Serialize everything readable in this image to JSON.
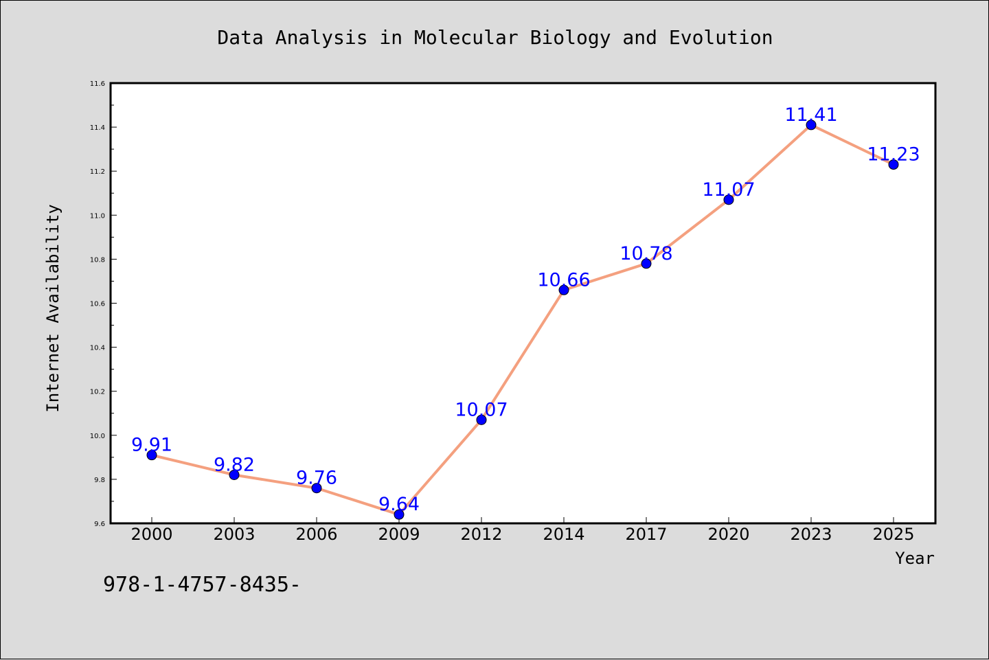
{
  "chart_data": {
    "type": "line",
    "title": "Data Analysis in Molecular Biology and Evolution",
    "xlabel": "Year",
    "ylabel": "Internet Availability",
    "categories": [
      "2000",
      "2003",
      "2006",
      "2009",
      "2012",
      "2014",
      "2017",
      "2020",
      "2023",
      "2025"
    ],
    "series": [
      {
        "values": [
          9.91,
          9.82,
          9.76,
          9.64,
          10.07,
          10.66,
          10.78,
          11.07,
          11.41,
          11.23
        ],
        "labels": [
          "9.91",
          "9.82",
          "9.76",
          "9.64",
          "10.07",
          "10.66",
          "10.78",
          "11.07",
          "11.41",
          "11.23"
        ],
        "line_color": "#f4a07f",
        "marker_color": "#0000ff"
      }
    ],
    "ylim": [
      9.6,
      11.6
    ],
    "yticks": [
      9.6,
      9.8,
      10.0,
      10.2,
      10.4,
      10.6,
      10.8,
      11.0,
      11.2,
      11.4,
      11.6
    ],
    "ytick_labels": [
      "9.6",
      "9.8",
      "10.0",
      "10.2",
      "10.4",
      "10.6",
      "10.8",
      "11.0",
      "11.2",
      "11.4",
      "11.6"
    ],
    "grid": false,
    "legend": "none",
    "background_color": "#dcdcdc",
    "plot_background_color": "#ffffff"
  },
  "footer": {
    "isbn": "978-1-4757-8435-"
  }
}
